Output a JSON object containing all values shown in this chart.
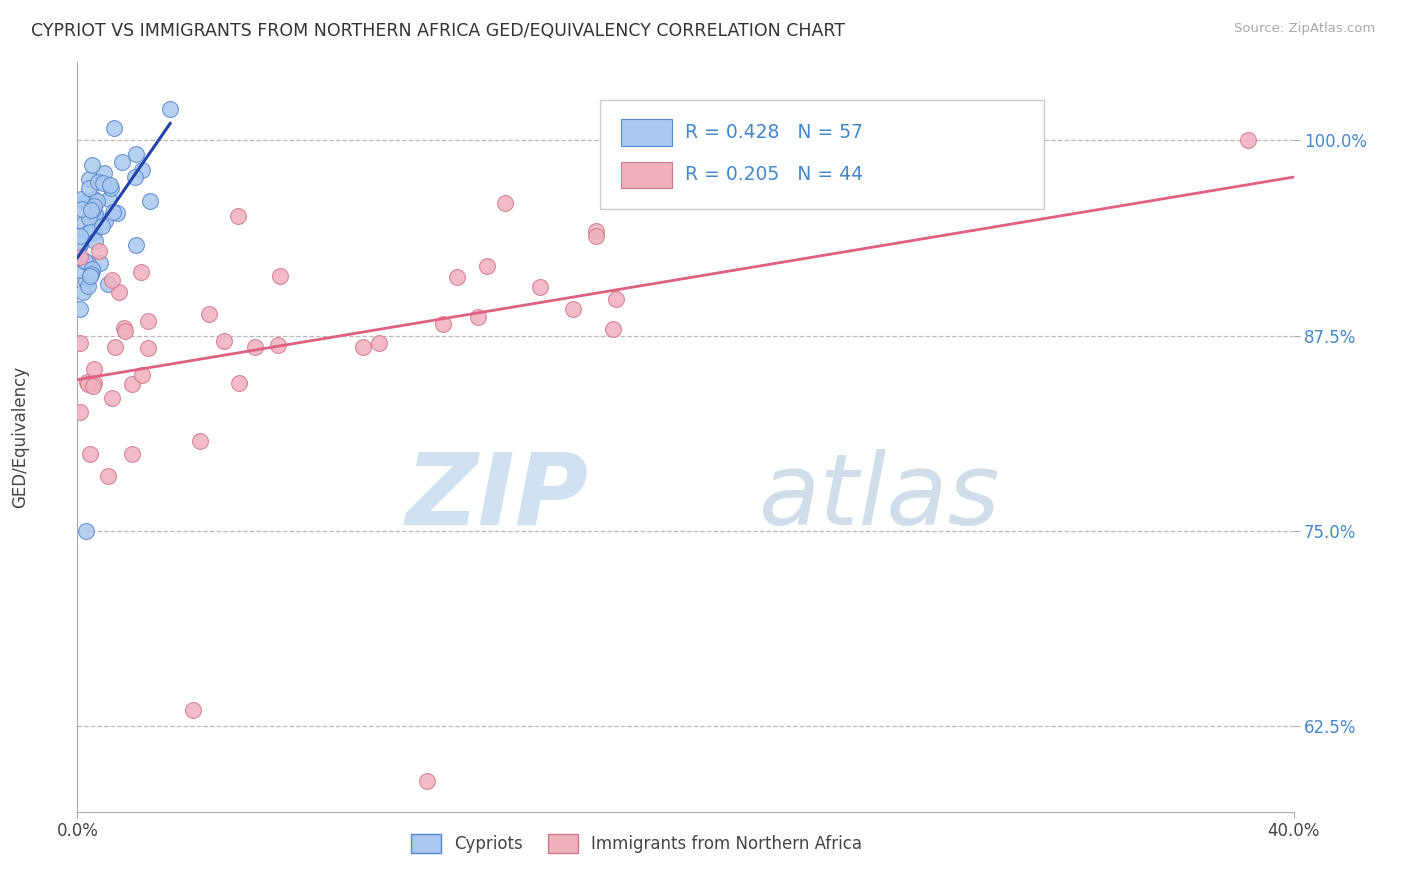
{
  "title": "CYPRIOT VS IMMIGRANTS FROM NORTHERN AFRICA GED/EQUIVALENCY CORRELATION CHART",
  "source": "Source: ZipAtlas.com",
  "ylabel": "GED/Equivalency",
  "xlim": [
    0.0,
    0.4
  ],
  "ylim": [
    0.57,
    1.05
  ],
  "yticks": [
    0.625,
    0.75,
    0.875,
    1.0
  ],
  "ytick_labels": [
    "62.5%",
    "75.0%",
    "87.5%",
    "100.0%"
  ],
  "xticks": [
    0.0,
    0.4
  ],
  "xtick_labels": [
    "0.0%",
    "40.0%"
  ],
  "blue_color": "#aac8f0",
  "blue_edge_color": "#5588cc",
  "pink_color": "#f0b0be",
  "pink_edge_color": "#d07888",
  "blue_line_color": "#2244aa",
  "pink_line_color": "#e06080",
  "blue_R": 0.428,
  "blue_N": 57,
  "pink_R": 0.205,
  "pink_N": 44,
  "legend_label_blue": "Cypriots",
  "legend_label_pink": "Immigrants from Northern Africa",
  "grid_color": "#bbbbbb",
  "background_color": "#ffffff",
  "figsize": [
    14.06,
    8.92
  ],
  "dpi": 100,
  "watermark_zip_color": "#c8ddf0",
  "watermark_atlas_color": "#b8cce0"
}
